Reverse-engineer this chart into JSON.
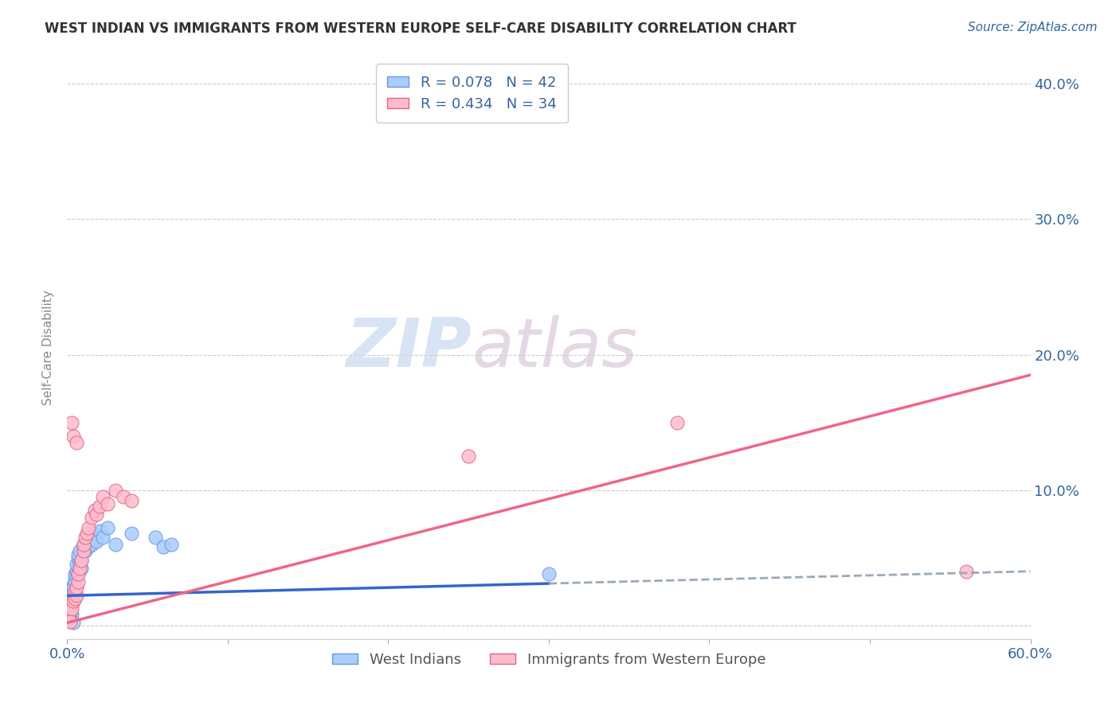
{
  "title": "WEST INDIAN VS IMMIGRANTS FROM WESTERN EUROPE SELF-CARE DISABILITY CORRELATION CHART",
  "source": "Source: ZipAtlas.com",
  "ylabel": "Self-Care Disability",
  "xlim": [
    0.0,
    0.6
  ],
  "ylim": [
    -0.01,
    0.42
  ],
  "xticks": [
    0.0,
    0.1,
    0.2,
    0.3,
    0.4,
    0.5,
    0.6
  ],
  "yticks": [
    0.0,
    0.1,
    0.2,
    0.3,
    0.4
  ],
  "background_color": "#ffffff",
  "grid_color": "#cccccc",
  "west_indians": {
    "name": "West Indians",
    "R": 0.078,
    "N": 42,
    "color_fill": "#aaccff",
    "color_edge": "#6699dd",
    "x": [
      0.001,
      0.002,
      0.002,
      0.003,
      0.003,
      0.003,
      0.004,
      0.004,
      0.004,
      0.005,
      0.005,
      0.005,
      0.006,
      0.006,
      0.007,
      0.007,
      0.007,
      0.008,
      0.008,
      0.009,
      0.009,
      0.01,
      0.01,
      0.011,
      0.012,
      0.013,
      0.014,
      0.015,
      0.016,
      0.018,
      0.02,
      0.022,
      0.025,
      0.03,
      0.04,
      0.055,
      0.06,
      0.065,
      0.002,
      0.003,
      0.3,
      0.004
    ],
    "y": [
      0.01,
      0.015,
      0.012,
      0.02,
      0.018,
      0.022,
      0.025,
      0.03,
      0.028,
      0.035,
      0.032,
      0.038,
      0.04,
      0.045,
      0.038,
      0.05,
      0.052,
      0.045,
      0.055,
      0.042,
      0.048,
      0.06,
      0.058,
      0.055,
      0.062,
      0.058,
      0.065,
      0.06,
      0.068,
      0.062,
      0.07,
      0.065,
      0.072,
      0.06,
      0.068,
      0.065,
      0.058,
      0.06,
      0.005,
      0.008,
      0.038,
      0.002
    ]
  },
  "immigrants": {
    "name": "Immigrants from Western Europe",
    "R": 0.434,
    "N": 34,
    "color_fill": "#ffbbcc",
    "color_edge": "#dd6688",
    "x": [
      0.001,
      0.002,
      0.003,
      0.003,
      0.004,
      0.005,
      0.005,
      0.006,
      0.006,
      0.007,
      0.007,
      0.008,
      0.009,
      0.01,
      0.01,
      0.011,
      0.012,
      0.013,
      0.015,
      0.017,
      0.018,
      0.02,
      0.022,
      0.025,
      0.03,
      0.035,
      0.04,
      0.25,
      0.38,
      0.56,
      0.003,
      0.004,
      0.006,
      0.002
    ],
    "y": [
      0.005,
      0.01,
      0.015,
      0.012,
      0.018,
      0.02,
      0.025,
      0.022,
      0.028,
      0.032,
      0.038,
      0.042,
      0.048,
      0.055,
      0.06,
      0.065,
      0.068,
      0.072,
      0.08,
      0.085,
      0.082,
      0.088,
      0.095,
      0.09,
      0.1,
      0.095,
      0.092,
      0.125,
      0.15,
      0.04,
      0.15,
      0.14,
      0.135,
      0.003
    ]
  },
  "legend_R1": "0.078",
  "legend_N1": "42",
  "legend_R2": "0.434",
  "legend_N2": "34",
  "watermark_zip": "ZIP",
  "watermark_atlas": "atlas"
}
